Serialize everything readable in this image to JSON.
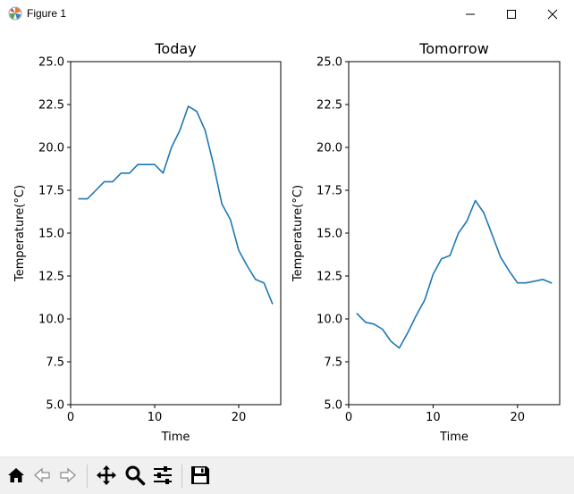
{
  "window": {
    "title": "Figure 1"
  },
  "icons": {
    "app": "matplotlib-figure-icon",
    "minimize": "minimize-icon",
    "maximize": "maximize-icon",
    "close": "close-icon"
  },
  "toolbar": {
    "buttons": [
      {
        "name": "home-button",
        "icon": "home-icon"
      },
      {
        "name": "back-button",
        "icon": "arrow-left-icon"
      },
      {
        "name": "forward-button",
        "icon": "arrow-right-icon"
      },
      {
        "name": "pan-button",
        "icon": "move-icon"
      },
      {
        "name": "zoom-button",
        "icon": "magnifier-icon"
      },
      {
        "name": "configure-subplots-button",
        "icon": "sliders-icon"
      },
      {
        "name": "save-button",
        "icon": "floppy-disk-icon"
      }
    ]
  },
  "line_color": "#1f77b4",
  "chart_data": [
    {
      "type": "line",
      "title": "Today",
      "xlabel": "Time",
      "ylabel": "Temperature(°C)",
      "xlim": [
        0,
        25
      ],
      "ylim": [
        5.0,
        25.0
      ],
      "xticks": [
        "0",
        "10",
        "20"
      ],
      "yticks": [
        "5.0",
        "7.5",
        "10.0",
        "12.5",
        "15.0",
        "17.5",
        "20.0",
        "22.5",
        "25.0"
      ],
      "grid": false,
      "x": [
        1,
        2,
        3,
        4,
        5,
        6,
        7,
        8,
        9,
        10,
        11,
        12,
        13,
        14,
        15,
        16,
        17,
        18,
        19,
        20,
        21,
        22,
        23,
        24
      ],
      "values": [
        17.0,
        17.0,
        17.5,
        18.0,
        18.0,
        18.5,
        18.5,
        19.0,
        19.0,
        19.0,
        18.5,
        20.0,
        21.0,
        22.4,
        22.1,
        21.0,
        19.0,
        16.7,
        15.8,
        14.0,
        13.1,
        12.3,
        12.1,
        10.9
      ]
    },
    {
      "type": "line",
      "title": "Tomorrow",
      "xlabel": "Time",
      "ylabel": "Temperature(°C)",
      "xlim": [
        0,
        25
      ],
      "ylim": [
        5.0,
        25.0
      ],
      "xticks": [
        "0",
        "10",
        "20"
      ],
      "yticks": [
        "5.0",
        "7.5",
        "10.0",
        "12.5",
        "15.0",
        "17.5",
        "20.0",
        "22.5",
        "25.0"
      ],
      "grid": false,
      "x": [
        1,
        2,
        3,
        4,
        5,
        6,
        7,
        8,
        9,
        10,
        11,
        12,
        13,
        14,
        15,
        16,
        17,
        18,
        19,
        20,
        21,
        22,
        23,
        24
      ],
      "values": [
        10.3,
        9.8,
        9.7,
        9.4,
        8.7,
        8.3,
        9.2,
        10.2,
        11.1,
        12.6,
        13.5,
        13.7,
        15.0,
        15.7,
        16.9,
        16.2,
        14.9,
        13.6,
        12.8,
        12.1,
        12.1,
        12.2,
        12.3,
        12.1
      ]
    }
  ]
}
